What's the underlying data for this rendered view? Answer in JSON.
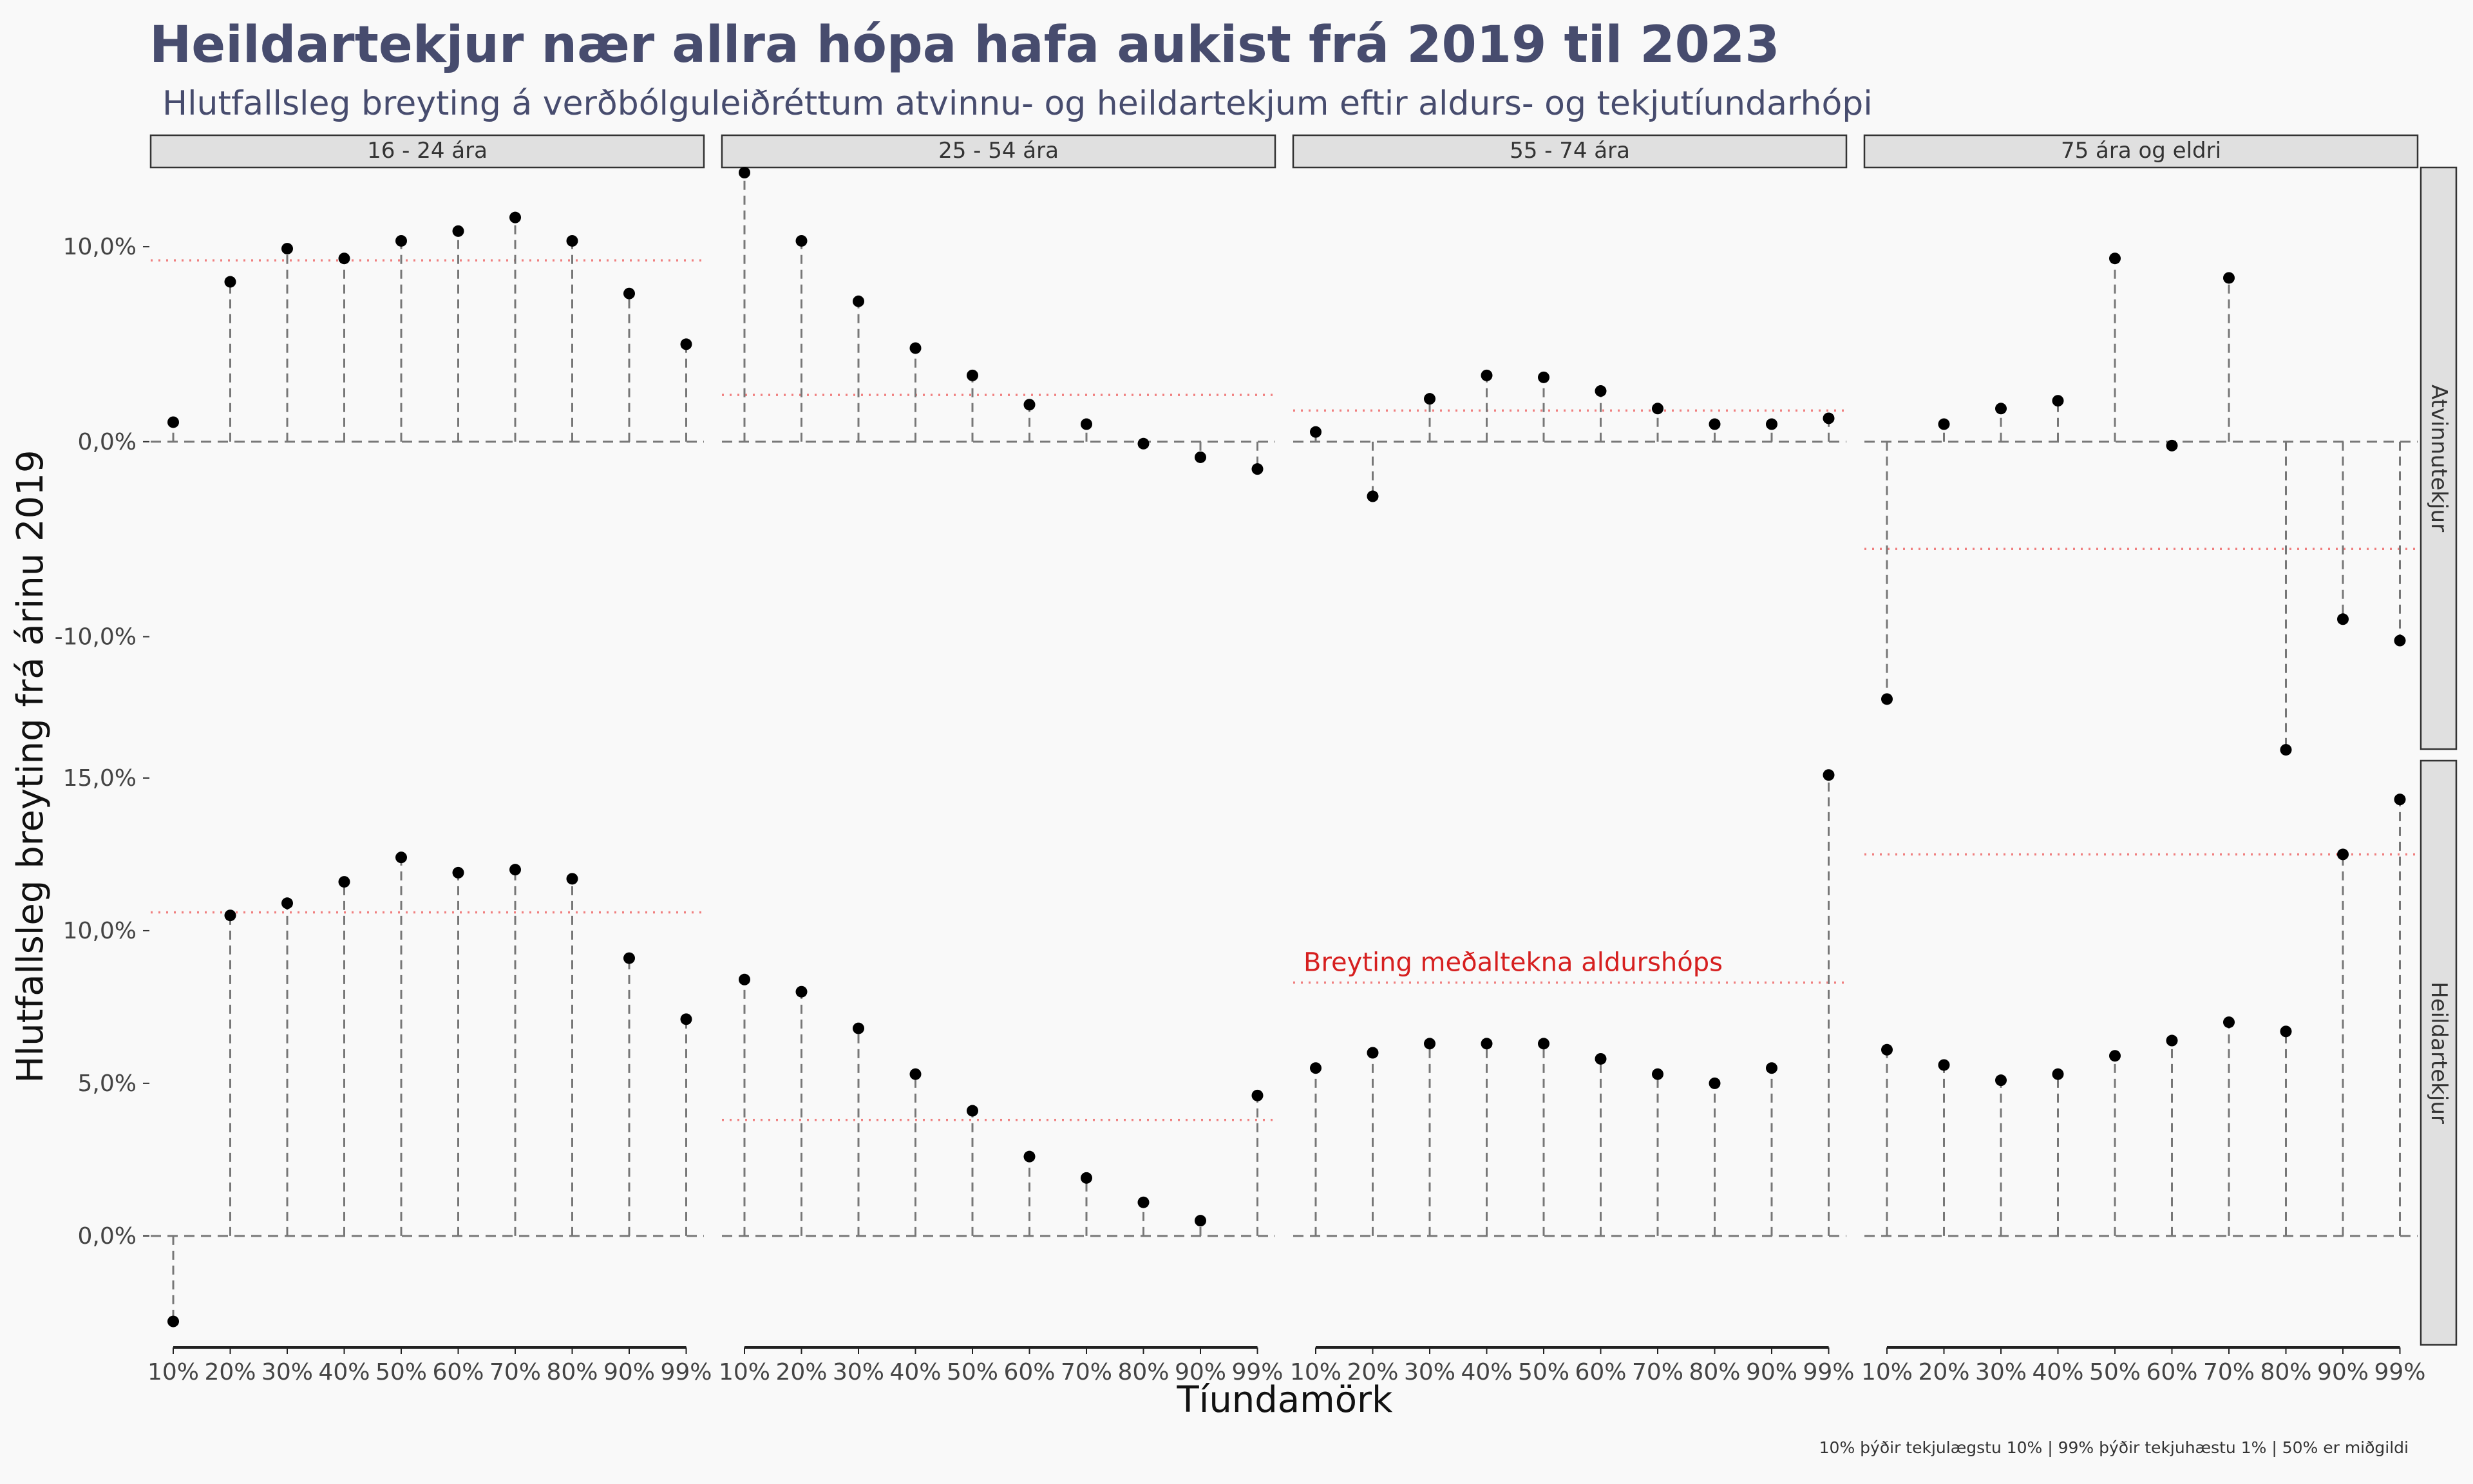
{
  "chart_data": {
    "type": "scatter",
    "title": "Heildartekjur nær allra hópa hafa aukist frá 2019 til 2023",
    "subtitle": "Hlutfallsleg breyting á verðbólguleiðréttum atvinnu- og heildartekjum eftir aldurs- og tekjutíundarhópi",
    "xlabel": "Tíundamörk",
    "ylabel": "Hlutfallsleg breyting frá árinu 2019",
    "caption": "10% þýðir tekjulægstu 10% | 99% þýðir tekjuhæstu 1% | 50% er miðgildi",
    "annotation": "Breyting meðaltekna aldurshóps",
    "categories": [
      "10%",
      "20%",
      "30%",
      "40%",
      "50%",
      "60%",
      "70%",
      "80%",
      "90%",
      "99%"
    ],
    "columns": [
      "16 - 24 ára",
      "25 - 54 ára",
      "55 - 74 ára",
      "75 ára og eldri"
    ],
    "grid": false,
    "colors": {
      "background": "#f9f9f9",
      "title": "#474c6e",
      "point": "#000000",
      "segment": "#777777",
      "mean_line": "#f08080",
      "annotation": "#d61f1f",
      "strip_fill": "#e0e0e0"
    },
    "rows": [
      {
        "name": "Atvinnutekjur",
        "ylim": [
          -15.5,
          13.8
        ],
        "yticks": [
          -10,
          0,
          10
        ],
        "tick_labels": [
          "-10,0%",
          "0,0%",
          "10,0%"
        ],
        "panels": [
          {
            "values": [
              1.0,
              8.2,
              9.9,
              9.4,
              10.3,
              10.8,
              11.5,
              10.3,
              7.6,
              5.0
            ],
            "mean": 9.3
          },
          {
            "values": [
              13.8,
              10.3,
              7.2,
              4.8,
              3.4,
              1.9,
              0.9,
              -0.1,
              -0.8,
              -1.4
            ],
            "mean": 2.4
          },
          {
            "values": [
              0.5,
              -2.8,
              2.2,
              3.4,
              3.3,
              2.6,
              1.7,
              0.9,
              0.9,
              1.2
            ],
            "mean": 1.6
          },
          {
            "values": [
              -13.2,
              0.9,
              1.7,
              2.1,
              9.4,
              -0.2,
              8.4,
              -15.8,
              -9.1,
              -10.2
            ],
            "mean": -5.5
          }
        ]
      },
      {
        "name": "Heildartekjur",
        "ylim": [
          -3.4,
          15.4
        ],
        "yticks": [
          0,
          5,
          10,
          15
        ],
        "tick_labels": [
          "0,0%",
          "5,0%",
          "10,0%",
          "15,0%"
        ],
        "panels": [
          {
            "values": [
              -2.8,
              10.5,
              10.9,
              11.6,
              12.4,
              11.9,
              12.0,
              11.7,
              9.1,
              7.1
            ],
            "mean": 10.6
          },
          {
            "values": [
              8.4,
              8.0,
              6.8,
              5.3,
              4.1,
              2.6,
              1.9,
              1.1,
              0.5,
              4.6
            ],
            "mean": 3.8
          },
          {
            "values": [
              5.5,
              6.0,
              6.3,
              6.3,
              6.3,
              5.8,
              5.3,
              5.0,
              5.5,
              15.1
            ],
            "mean": 8.3
          },
          {
            "values": [
              6.1,
              5.6,
              5.1,
              5.3,
              5.9,
              6.4,
              7.0,
              6.7,
              12.5,
              14.3
            ],
            "mean": 12.5
          }
        ]
      }
    ]
  }
}
